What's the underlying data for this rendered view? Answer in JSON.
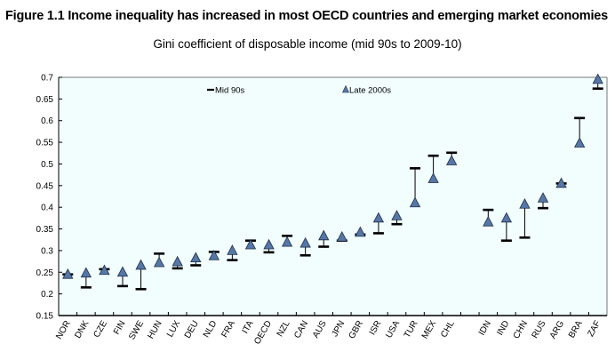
{
  "figure": {
    "title": "Figure 1.1 Income inequality has increased in most OECD countries and emerging market economies",
    "subtitle": "Gini coefficient of disposable income (mid 90s to 2009-10)"
  },
  "colors": {
    "plot_background": "#f2fdfd",
    "triangle_fill": "#5677a6",
    "triangle_stroke": "#1f2f4a",
    "bar": "#000000",
    "axis": "#000000"
  },
  "chart_data": {
    "type": "scatter",
    "title": "Gini coefficient of disposable income (mid 90s to 2009-10)",
    "xlabel": "",
    "ylabel": "",
    "ylim": [
      0.15,
      0.7
    ],
    "yticks": [
      0.15,
      0.2,
      0.25,
      0.3,
      0.35,
      0.4,
      0.45,
      0.5,
      0.55,
      0.6,
      0.65,
      0.7
    ],
    "ytick_labels": [
      "0.15",
      "0.2",
      "0.25",
      "0.3",
      "0.35",
      "0.4",
      "0.45",
      "0.5",
      "0.55",
      "0.6",
      "0.65",
      "0.7"
    ],
    "grid": false,
    "legend": {
      "placement": "top",
      "entries": [
        {
          "name": "Mid 90s",
          "marker": "dash"
        },
        {
          "name": "Late 2000s",
          "marker": "triangle"
        }
      ]
    },
    "categories": [
      "NOR",
      "DNK",
      "CZE",
      "FIN",
      "SWE",
      "HUN",
      "LUX",
      "DEU",
      "NLD",
      "FRA",
      "ITA",
      "OECD",
      "NZL",
      "CAN",
      "AUS",
      "JPN",
      "GBR",
      "ISR",
      "USA",
      "TUR",
      "MEX",
      "CHL",
      "",
      "IDN",
      "IND",
      "CHN",
      "RUS",
      "ARG",
      "BRA",
      "ZAF"
    ],
    "series": [
      {
        "name": "Mid 90s",
        "values": [
          0.245,
          0.215,
          0.257,
          0.218,
          0.211,
          0.293,
          0.259,
          0.266,
          0.297,
          0.278,
          0.323,
          0.296,
          0.334,
          0.289,
          0.309,
          0.323,
          0.337,
          0.34,
          0.361,
          0.49,
          0.519,
          0.526,
          null,
          0.394,
          0.323,
          0.33,
          0.398,
          0.455,
          0.606,
          0.674
        ]
      },
      {
        "name": "Late 2000s",
        "values": [
          0.245,
          0.248,
          0.254,
          0.25,
          0.266,
          0.272,
          0.274,
          0.283,
          0.288,
          0.3,
          0.313,
          0.313,
          0.319,
          0.317,
          0.334,
          0.331,
          0.342,
          0.375,
          0.38,
          0.41,
          0.466,
          0.507,
          null,
          0.366,
          0.375,
          0.407,
          0.421,
          0.455,
          0.548,
          0.695
        ]
      }
    ]
  }
}
